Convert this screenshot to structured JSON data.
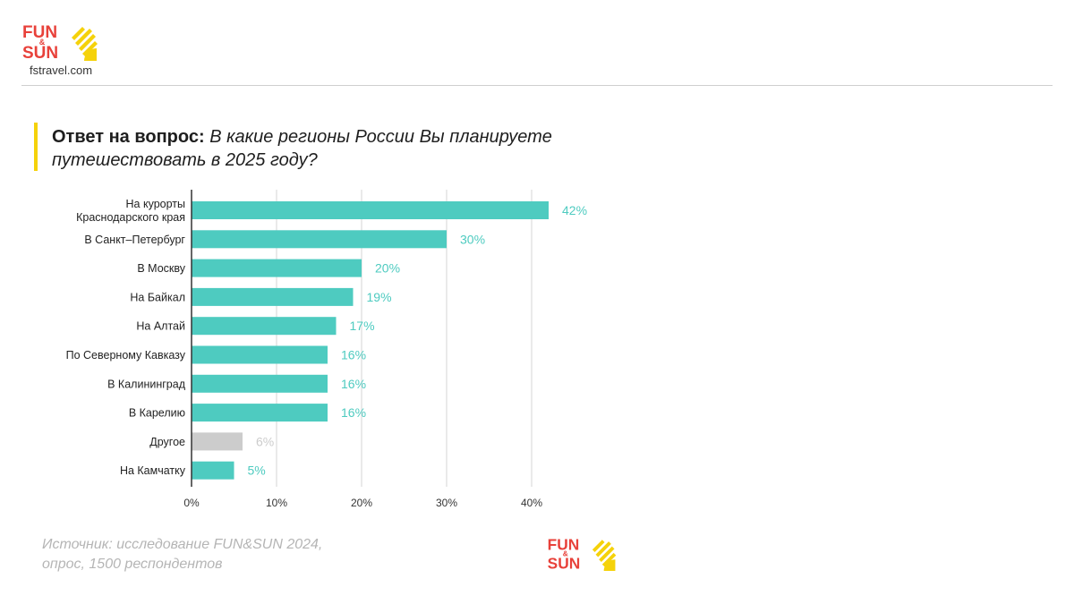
{
  "brand": {
    "logo_word_1": "FUN",
    "logo_amp": "&",
    "logo_word_2": "SUN",
    "site": "fstravel.com",
    "colors": {
      "red": "#e8413a",
      "yellow": "#f5d20a"
    }
  },
  "question": {
    "lead": "Ответ на вопрос:",
    "text": "В какие регионы России Вы планируете путешествовать  в 2025 году?"
  },
  "source_note": {
    "line1": "Источник: исследование FUN&SUN 2024,",
    "line2": "опрос, 1500 респондентов"
  },
  "chart_data": {
    "type": "bar",
    "orientation": "horizontal",
    "categories": [
      [
        "На курорты",
        "Краснодарского края"
      ],
      [
        "В Санкт–Петербург"
      ],
      [
        "В Москву"
      ],
      [
        "На Байкал"
      ],
      [
        "На Алтай"
      ],
      [
        "По Северному Кавказу"
      ],
      [
        "В Калининград"
      ],
      [
        "В Карелию"
      ],
      [
        "Другое"
      ],
      [
        "На Камчатку"
      ]
    ],
    "values": [
      42,
      30,
      20,
      19,
      17,
      16,
      16,
      16,
      6,
      5
    ],
    "value_labels": [
      "42%",
      "30%",
      "20%",
      "19%",
      "17%",
      "16%",
      "16%",
      "16%",
      "6%",
      "5%"
    ],
    "bar_colors": [
      "#4ecbc0",
      "#4ecbc0",
      "#4ecbc0",
      "#4ecbc0",
      "#4ecbc0",
      "#4ecbc0",
      "#4ecbc0",
      "#4ecbc0",
      "#cccccc",
      "#4ecbc0"
    ],
    "label_colors": [
      "#4ecbc0",
      "#4ecbc0",
      "#4ecbc0",
      "#4ecbc0",
      "#4ecbc0",
      "#4ecbc0",
      "#4ecbc0",
      "#4ecbc0",
      "#cccccc",
      "#4ecbc0"
    ],
    "x_ticks": [
      0,
      10,
      20,
      30,
      40
    ],
    "x_tick_labels": [
      "0%",
      "10%",
      "20%",
      "30%",
      "40%"
    ],
    "xlim": [
      0,
      42
    ],
    "grid": true,
    "legend": false
  }
}
